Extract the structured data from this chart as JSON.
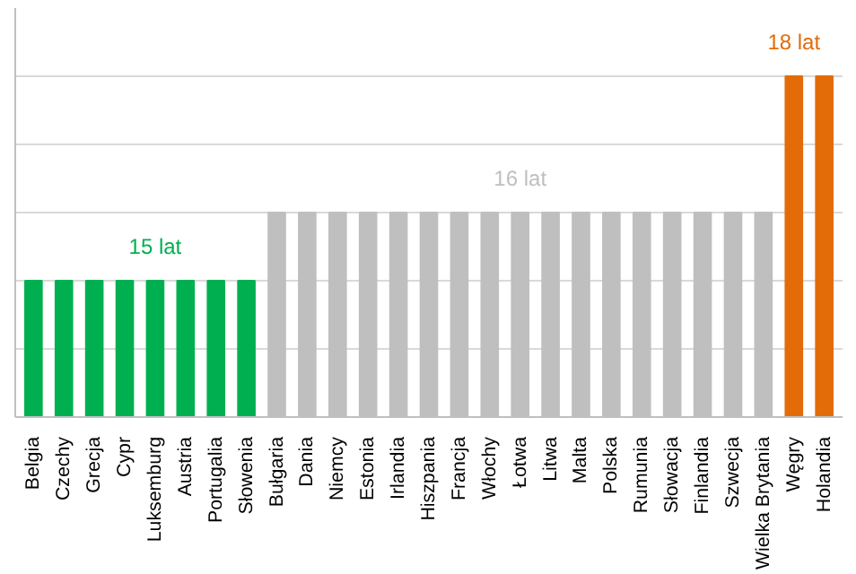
{
  "chart_data": {
    "type": "bar",
    "categories": [
      "Belgia",
      "Czechy",
      "Grecja",
      "Cypr",
      "Luksemburg",
      "Austria",
      "Portugalia",
      "Słowenia",
      "Bułgaria",
      "Dania",
      "Niemcy",
      "Estonia",
      "Irlandia",
      "Hiszpania",
      "Francja",
      "Włochy",
      "Łotwa",
      "Litwa",
      "Malta",
      "Polska",
      "Rumunia",
      "Słowacja",
      "Finlandia",
      "Szwecja",
      "Wielka Brytania",
      "Węgry",
      "Holandia"
    ],
    "values": [
      15,
      15,
      15,
      15,
      15,
      15,
      15,
      15,
      16,
      16,
      16,
      16,
      16,
      16,
      16,
      16,
      16,
      16,
      16,
      16,
      16,
      16,
      16,
      16,
      16,
      18,
      18
    ],
    "colors": [
      "#00b050",
      "#00b050",
      "#00b050",
      "#00b050",
      "#00b050",
      "#00b050",
      "#00b050",
      "#00b050",
      "#bfbfbf",
      "#bfbfbf",
      "#bfbfbf",
      "#bfbfbf",
      "#bfbfbf",
      "#bfbfbf",
      "#bfbfbf",
      "#bfbfbf",
      "#bfbfbf",
      "#bfbfbf",
      "#bfbfbf",
      "#bfbfbf",
      "#bfbfbf",
      "#bfbfbf",
      "#bfbfbf",
      "#bfbfbf",
      "#bfbfbf",
      "#e36c09",
      "#e36c09"
    ],
    "value_labels": [
      null,
      null,
      null,
      null,
      "15 lat",
      null,
      null,
      null,
      null,
      null,
      null,
      null,
      null,
      null,
      null,
      null,
      "16 lat",
      null,
      null,
      null,
      null,
      null,
      null,
      null,
      null,
      "18 lat",
      null
    ],
    "ylim": [
      13,
      19
    ],
    "tick_labels": "x",
    "grid": "y"
  }
}
